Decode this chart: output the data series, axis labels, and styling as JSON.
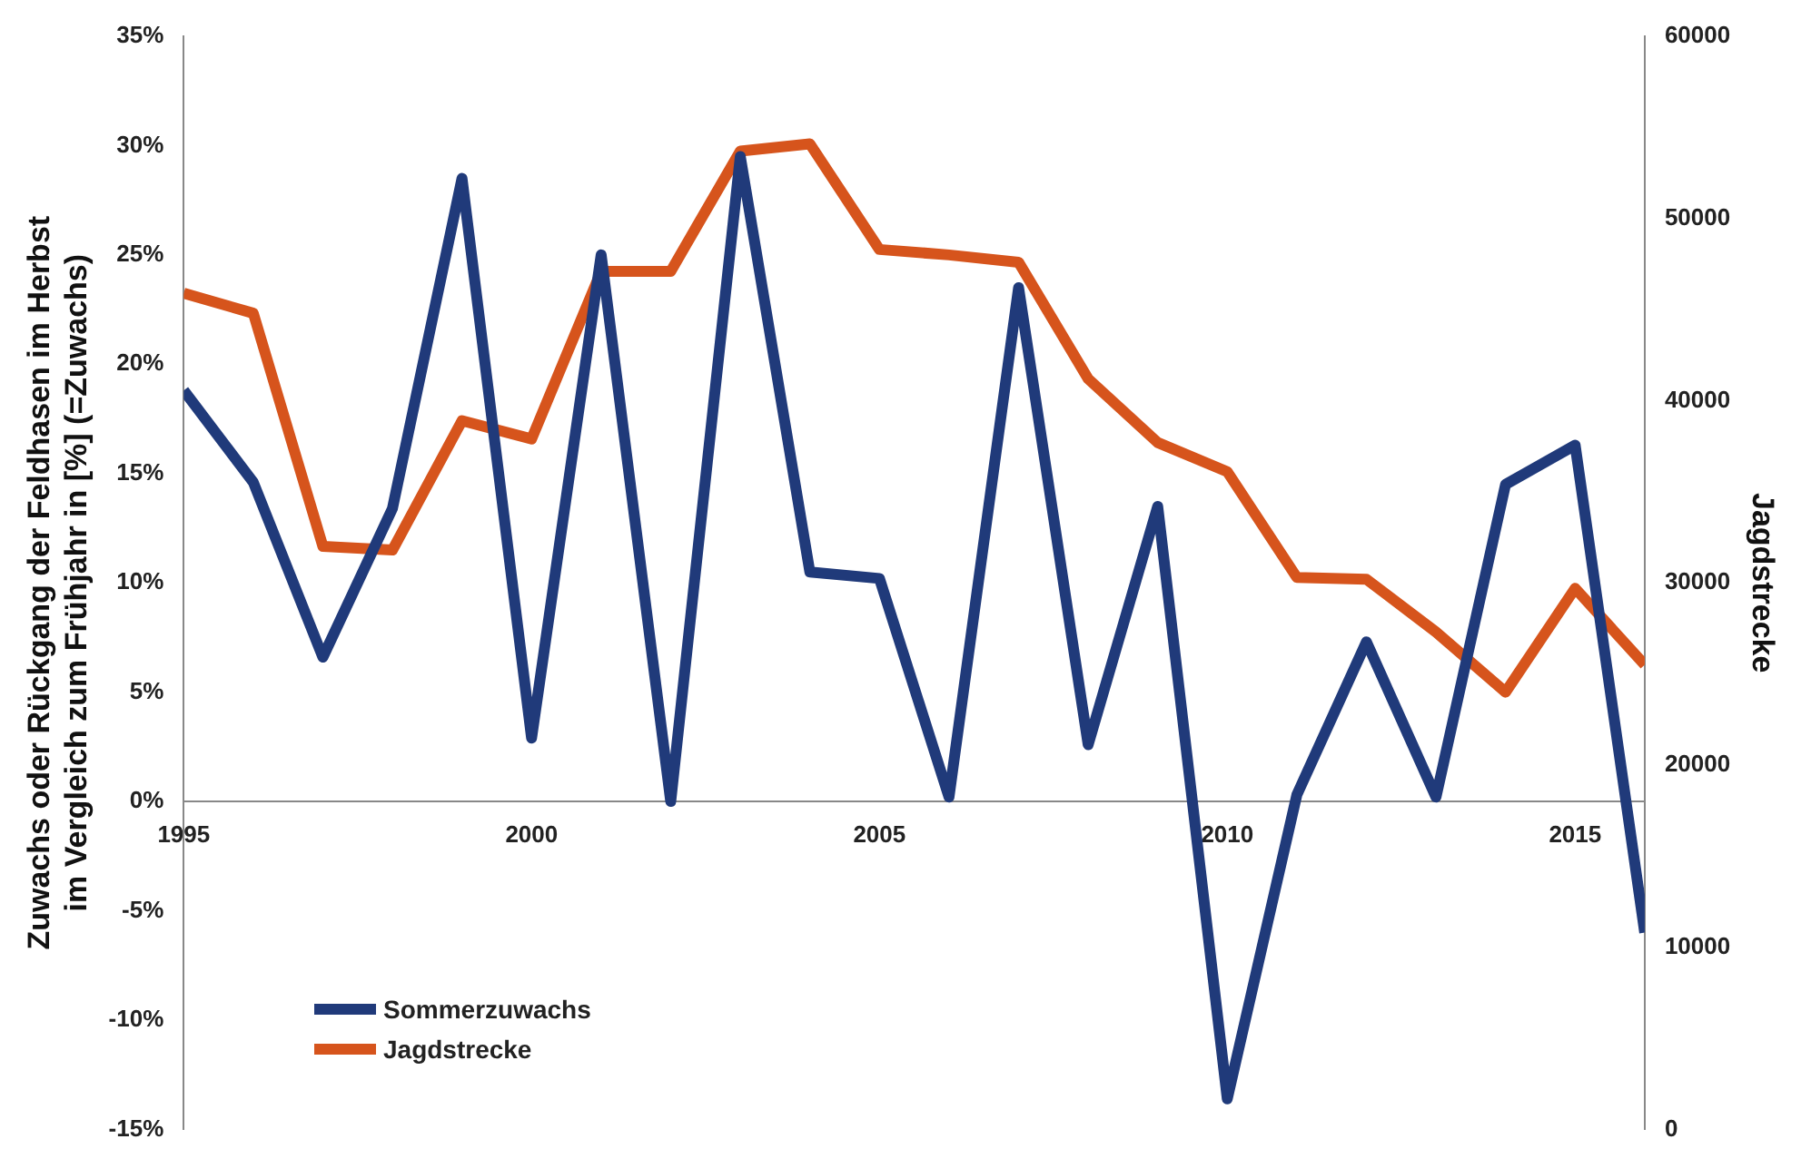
{
  "chart_data": {
    "type": "line",
    "ylabel": "Zuwachs oder Rückgang der Feldhasen im Herbst\nim Vergleich zum Frühjahr in [%] (=Zuwachs)",
    "y2label": "Jagdstrecke",
    "x": [
      1995,
      1996,
      1997,
      1998,
      1999,
      2000,
      2001,
      2002,
      2003,
      2004,
      2005,
      2006,
      2007,
      2008,
      2009,
      2010,
      2011,
      2012,
      2013,
      2014,
      2015,
      2016
    ],
    "series": [
      {
        "name": "Sommerzuwachs",
        "color": "#203a7a",
        "values": [
          18.8,
          14.6,
          6.6,
          13.4,
          28.5,
          2.9,
          25,
          0,
          29.5,
          10.5,
          10.2,
          0.2,
          23.5,
          2.6,
          13.5,
          -13.6,
          0.3,
          7.3,
          0.2,
          14.5,
          16.3,
          -6
        ]
      },
      {
        "name": "Jagdstrecke",
        "color": "#d6541c",
        "axis": "y2",
        "values": [
          45900,
          44800,
          32000,
          31800,
          38900,
          37900,
          47100,
          47100,
          53700,
          54100,
          48300,
          48000,
          47600,
          41200,
          37700,
          36100,
          30300,
          30200,
          27300,
          24000,
          29700,
          25500
        ]
      }
    ],
    "xlim": [
      1995,
      2016
    ],
    "xticks": [
      1995,
      2000,
      2005,
      2010,
      2015
    ],
    "ylim": [
      -15,
      35
    ],
    "yticks": [
      {
        "value": -15,
        "label": "-15%"
      },
      {
        "value": -10,
        "label": "-10%"
      },
      {
        "value": -5,
        "label": "-5%"
      },
      {
        "value": 0,
        "label": "0%"
      },
      {
        "value": 5,
        "label": "5%"
      },
      {
        "value": 10,
        "label": "10%"
      },
      {
        "value": 15,
        "label": "15%"
      },
      {
        "value": 20,
        "label": "20%"
      },
      {
        "value": 25,
        "label": "25%"
      },
      {
        "value": 30,
        "label": "30%"
      },
      {
        "value": 35,
        "label": "35%"
      }
    ],
    "y2lim": [
      0,
      60000
    ],
    "y2ticks": [
      0,
      10000,
      20000,
      30000,
      40000,
      50000,
      60000
    ],
    "grid": false,
    "legend": "bottom left",
    "marker": "none",
    "line_style": "solid"
  }
}
